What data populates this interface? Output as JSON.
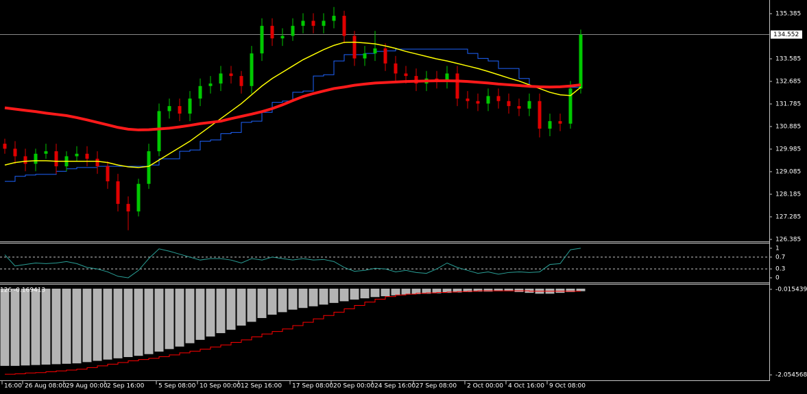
{
  "chart_data": [
    {
      "type": "candlestick",
      "categories": [
        "16:00",
        null,
        "26 Aug 08:00",
        null,
        null,
        null,
        "29 Aug 00:00",
        null,
        null,
        null,
        "2 Sep 16:00",
        null,
        null,
        null,
        null,
        "5 Sep 08:00",
        null,
        null,
        null,
        "10 Sep 00:00",
        null,
        null,
        null,
        "12 Sep 16:00",
        null,
        null,
        null,
        null,
        "17 Sep 08:00",
        null,
        null,
        null,
        "20 Sep 00:00",
        null,
        null,
        null,
        "24 Sep 16:00",
        null,
        null,
        null,
        "27 Sep 08:00",
        null,
        null,
        null,
        null,
        "2 Oct 00:00",
        null,
        null,
        null,
        "4 Oct 16:00",
        null,
        null,
        null,
        "9 Oct 08:00",
        null,
        null,
        null
      ],
      "open": [
        130.2,
        130.0,
        129.7,
        129.4,
        129.8,
        129.9,
        129.3,
        129.7,
        129.8,
        129.6,
        129.3,
        128.7,
        127.8,
        127.5,
        128.6,
        129.9,
        131.5,
        131.7,
        131.4,
        132.0,
        132.5,
        132.6,
        133.0,
        132.9,
        132.5,
        133.8,
        134.9,
        134.4,
        134.5,
        134.9,
        135.1,
        134.9,
        135.1,
        135.3,
        134.5,
        133.6,
        133.8,
        134.0,
        133.4,
        133.0,
        132.9,
        132.6,
        132.8,
        132.7,
        133.0,
        132.0,
        131.9,
        131.8,
        132.1,
        131.9,
        131.7,
        131.6,
        131.9,
        130.8,
        131.1,
        131.0,
        132.4
      ],
      "high": [
        130.4,
        130.3,
        130.0,
        130.0,
        130.2,
        130.2,
        129.9,
        130.1,
        130.1,
        129.9,
        129.5,
        129.0,
        128.1,
        128.8,
        130.2,
        131.8,
        132.0,
        132.0,
        132.3,
        132.8,
        132.9,
        133.3,
        133.3,
        133.1,
        134.1,
        135.2,
        135.2,
        134.8,
        135.2,
        135.4,
        135.4,
        135.4,
        135.65,
        135.5,
        134.7,
        134.1,
        134.7,
        134.2,
        133.7,
        133.3,
        133.2,
        133.1,
        133.1,
        133.3,
        133.3,
        132.3,
        132.2,
        132.4,
        132.4,
        132.2,
        132.0,
        132.2,
        132.2,
        131.4,
        131.4,
        132.7,
        134.75
      ],
      "low": [
        129.8,
        129.4,
        129.1,
        129.1,
        129.6,
        129.0,
        129.1,
        129.5,
        129.3,
        129.0,
        128.4,
        127.5,
        126.75,
        127.3,
        128.4,
        129.7,
        131.2,
        131.1,
        131.1,
        131.7,
        132.2,
        132.3,
        132.6,
        132.2,
        132.2,
        133.5,
        134.1,
        134.1,
        134.3,
        134.6,
        134.6,
        134.6,
        134.8,
        134.2,
        133.3,
        133.3,
        133.5,
        133.1,
        132.7,
        132.6,
        132.3,
        132.3,
        132.4,
        132.4,
        131.7,
        131.6,
        131.5,
        131.5,
        131.6,
        131.4,
        131.3,
        131.3,
        130.45,
        130.5,
        130.7,
        130.8,
        132.2
      ],
      "close": [
        130.0,
        129.7,
        129.4,
        129.8,
        129.9,
        129.3,
        129.7,
        129.8,
        129.6,
        129.3,
        128.7,
        127.8,
        127.5,
        128.6,
        129.9,
        131.5,
        131.7,
        131.4,
        132.0,
        132.5,
        132.6,
        133.0,
        132.9,
        132.5,
        133.8,
        134.9,
        134.4,
        134.5,
        134.9,
        135.1,
        134.9,
        135.1,
        135.3,
        134.5,
        133.6,
        133.8,
        134.0,
        133.4,
        133.0,
        132.9,
        132.6,
        132.8,
        132.7,
        133.0,
        132.0,
        131.9,
        131.8,
        132.1,
        131.9,
        131.7,
        131.6,
        131.9,
        130.8,
        131.1,
        131.0,
        132.4,
        134.552
      ],
      "up_color": "#00c800",
      "down_color": "#e00000",
      "overlays": [
        {
          "color": "#1e64ff",
          "width": 1,
          "values": [
            128.7,
            128.9,
            128.95,
            128.98,
            128.98,
            129.1,
            129.2,
            129.25,
            129.25,
            129.3,
            129.3,
            129.3,
            129.3,
            129.3,
            129.35,
            129.6,
            129.6,
            129.9,
            129.95,
            130.3,
            130.35,
            130.6,
            130.65,
            131.05,
            131.1,
            131.45,
            131.85,
            131.9,
            132.25,
            132.3,
            132.9,
            132.95,
            133.5,
            133.75,
            133.75,
            133.8,
            133.88,
            133.9,
            133.97,
            133.97,
            133.97,
            133.97,
            133.97,
            133.97,
            133.97,
            133.8,
            133.6,
            133.5,
            133.2,
            133.2,
            132.8,
            132.45,
            132.45,
            132.45,
            132.45,
            132.45,
            132.45
          ]
        },
        {
          "color": "#ffff00",
          "width": 1.5,
          "values": [
            129.35,
            129.45,
            129.5,
            129.52,
            129.52,
            129.5,
            129.5,
            129.5,
            129.5,
            129.5,
            129.45,
            129.35,
            129.28,
            129.25,
            129.3,
            129.55,
            129.8,
            130.05,
            130.3,
            130.6,
            130.9,
            131.2,
            131.5,
            131.8,
            132.15,
            132.5,
            132.8,
            133.05,
            133.3,
            133.55,
            133.75,
            133.95,
            134.12,
            134.24,
            134.25,
            134.22,
            134.18,
            134.1,
            134.0,
            133.88,
            133.78,
            133.68,
            133.58,
            133.5,
            133.4,
            133.3,
            133.2,
            133.08,
            132.95,
            132.82,
            132.7,
            132.55,
            132.4,
            132.25,
            132.15,
            132.12,
            132.45
          ]
        },
        {
          "color": "#ff1a1a",
          "width": 4,
          "values": [
            131.63,
            131.58,
            131.53,
            131.48,
            131.42,
            131.37,
            131.32,
            131.24,
            131.15,
            131.05,
            130.95,
            130.85,
            130.78,
            130.75,
            130.76,
            130.79,
            130.82,
            130.87,
            130.93,
            131.0,
            131.05,
            131.1,
            131.2,
            131.29,
            131.38,
            131.48,
            131.6,
            131.75,
            131.92,
            132.08,
            132.2,
            132.3,
            132.4,
            132.46,
            132.53,
            132.58,
            132.62,
            132.64,
            132.66,
            132.68,
            132.69,
            132.7,
            132.71,
            132.71,
            132.7,
            132.68,
            132.65,
            132.62,
            132.58,
            132.55,
            132.52,
            132.49,
            132.47,
            132.46,
            132.47,
            132.5,
            132.55
          ]
        }
      ],
      "current_price": 134.552,
      "ylim": [
        126.33,
        135.93
      ],
      "yticks": [
        135.385,
        133.585,
        132.685,
        131.785,
        130.885,
        129.985,
        129.085,
        128.185,
        127.285,
        126.385
      ]
    },
    {
      "type": "line",
      "series": [
        {
          "color": "#2aa198",
          "values": [
            0.78,
            0.4,
            0.45,
            0.5,
            0.48,
            0.5,
            0.55,
            0.48,
            0.35,
            0.3,
            0.2,
            0.05,
            0.0,
            0.25,
            0.65,
            0.98,
            0.9,
            0.8,
            0.7,
            0.6,
            0.65,
            0.65,
            0.6,
            0.5,
            0.65,
            0.6,
            0.7,
            0.65,
            0.6,
            0.65,
            0.6,
            0.62,
            0.55,
            0.35,
            0.22,
            0.25,
            0.32,
            0.3,
            0.2,
            0.25,
            0.18,
            0.15,
            0.3,
            0.5,
            0.35,
            0.25,
            0.15,
            0.2,
            0.12,
            0.18,
            0.2,
            0.18,
            0.2,
            0.45,
            0.48,
            0.95,
            1.0
          ]
        }
      ],
      "ylim": [
        -0.16,
        1.16
      ],
      "yticks": [
        1,
        0.7,
        0.3,
        0
      ],
      "dashed_levels": [
        0.7,
        0.3
      ]
    },
    {
      "type": "bar",
      "label": "126 -0.169413",
      "series": [
        {
          "color": "#b4b4b4",
          "values": [
            -1.84,
            -1.84,
            -1.83,
            -1.82,
            -1.81,
            -1.8,
            -1.79,
            -1.78,
            -1.75,
            -1.72,
            -1.69,
            -1.66,
            -1.63,
            -1.6,
            -1.56,
            -1.5,
            -1.44,
            -1.38,
            -1.3,
            -1.22,
            -1.14,
            -1.06,
            -0.98,
            -0.88,
            -0.79,
            -0.7,
            -0.62,
            -0.56,
            -0.5,
            -0.46,
            -0.42,
            -0.38,
            -0.34,
            -0.3,
            -0.26,
            -0.23,
            -0.2,
            -0.18,
            -0.16,
            -0.14,
            -0.13,
            -0.12,
            -0.11,
            -0.1,
            -0.09,
            -0.08,
            -0.07,
            -0.07,
            -0.06,
            -0.06,
            -0.08,
            -0.1,
            -0.12,
            -0.12,
            -0.1,
            -0.08,
            -0.06
          ]
        },
        {
          "color": "#ff0000",
          "style": "line",
          "values": [
            -2.04,
            -2.03,
            -2.01,
            -2.0,
            -1.98,
            -1.96,
            -1.94,
            -1.92,
            -1.88,
            -1.84,
            -1.8,
            -1.76,
            -1.72,
            -1.69,
            -1.66,
            -1.62,
            -1.58,
            -1.53,
            -1.49,
            -1.44,
            -1.39,
            -1.34,
            -1.28,
            -1.22,
            -1.15,
            -1.08,
            -1.02,
            -0.96,
            -0.88,
            -0.8,
            -0.72,
            -0.64,
            -0.56,
            -0.48,
            -0.4,
            -0.32,
            -0.25,
            -0.19,
            -0.15,
            -0.13,
            -0.11,
            -0.1,
            -0.09,
            -0.08,
            -0.07,
            -0.06,
            -0.05,
            -0.05,
            -0.05,
            -0.05,
            -0.05,
            -0.06,
            -0.06,
            -0.06,
            -0.06,
            -0.06,
            -0.06
          ]
        }
      ],
      "ylim": [
        -2.168,
        0.098
      ],
      "yticks": [
        -0.015439,
        -2.054568
      ]
    }
  ]
}
